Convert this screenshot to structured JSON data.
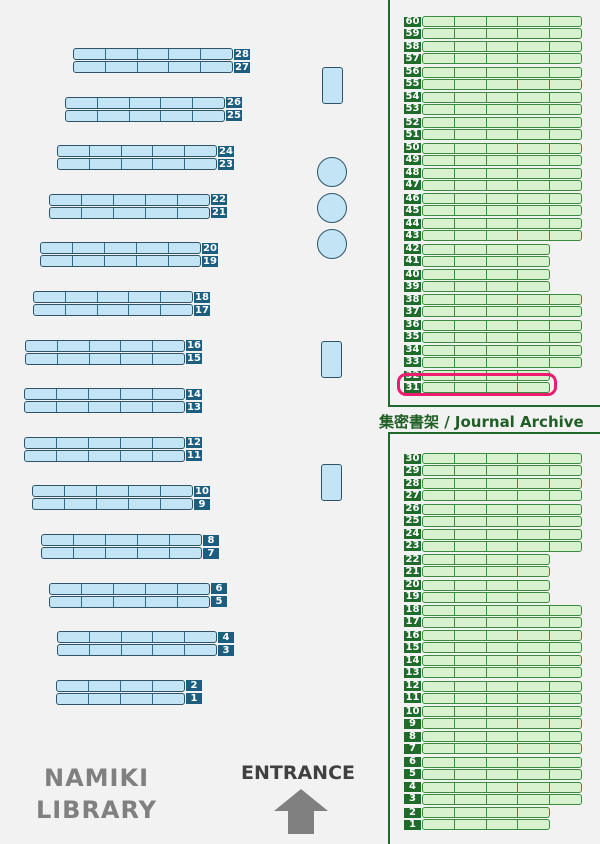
{
  "library_name": "NAMIKI\nLIBRARY",
  "library_name_lines": [
    "NAMIKI",
    "LIBRARY"
  ],
  "entrance_label": "ENTRANCE",
  "archive_label": "集密書架 / Journal Archive",
  "highlighted_shelf": 31,
  "colors": {
    "general_shelf": "#c2e4f5",
    "archive_shelf": "#d8f2cf",
    "highlight": "#ee1c6e",
    "archive_border": "#1f6b2a"
  },
  "general_shelves": [
    {
      "pair": [
        28,
        27
      ],
      "segments": 5
    },
    {
      "pair": [
        26,
        25
      ],
      "segments": 5
    },
    {
      "pair": [
        24,
        23
      ],
      "segments": 5
    },
    {
      "pair": [
        22,
        21
      ],
      "segments": 5
    },
    {
      "pair": [
        20,
        19
      ],
      "segments": 5
    },
    {
      "pair": [
        18,
        17
      ],
      "segments": 5
    },
    {
      "pair": [
        16,
        15
      ],
      "segments": 5
    },
    {
      "pair": [
        14,
        13
      ],
      "segments": 5
    },
    {
      "pair": [
        12,
        11
      ],
      "segments": 5
    },
    {
      "pair": [
        10,
        9
      ],
      "segments": 5
    },
    {
      "pair": [
        8,
        7
      ],
      "segments": 5
    },
    {
      "pair": [
        6,
        5
      ],
      "segments": 5
    },
    {
      "pair": [
        4,
        3
      ],
      "segments": 5
    },
    {
      "pair": [
        2,
        1
      ],
      "segments": 4
    }
  ],
  "archive_upper": [
    {
      "pair": [
        60,
        59
      ],
      "segments": 5
    },
    {
      "pair": [
        58,
        57
      ],
      "segments": 5
    },
    {
      "pair": [
        56,
        55
      ],
      "segments": 5
    },
    {
      "pair": [
        54,
        53
      ],
      "segments": 5
    },
    {
      "pair": [
        52,
        51
      ],
      "segments": 5
    },
    {
      "pair": [
        50,
        49
      ],
      "segments": 5
    },
    {
      "pair": [
        48,
        47
      ],
      "segments": 5
    },
    {
      "pair": [
        46,
        45
      ],
      "segments": 5
    },
    {
      "pair": [
        44,
        43
      ],
      "segments": 5
    },
    {
      "pair": [
        42,
        41
      ],
      "segments": 4
    },
    {
      "pair": [
        40,
        39
      ],
      "segments": 4
    },
    {
      "pair": [
        38,
        37
      ],
      "segments": 5
    },
    {
      "pair": [
        36,
        35
      ],
      "segments": 5
    },
    {
      "pair": [
        34,
        33
      ],
      "segments": 5
    },
    {
      "pair": [
        32,
        31
      ],
      "segments": 4
    }
  ],
  "archive_lower": [
    {
      "pair": [
        30,
        29
      ],
      "segments": 5
    },
    {
      "pair": [
        28,
        27
      ],
      "segments": 5
    },
    {
      "pair": [
        26,
        25
      ],
      "segments": 5
    },
    {
      "pair": [
        24,
        23
      ],
      "segments": 5
    },
    {
      "pair": [
        22,
        21
      ],
      "segments": 4
    },
    {
      "pair": [
        20,
        19
      ],
      "segments": 4
    },
    {
      "pair": [
        18,
        17
      ],
      "segments": 5
    },
    {
      "pair": [
        16,
        15
      ],
      "segments": 5
    },
    {
      "pair": [
        14,
        13
      ],
      "segments": 5
    },
    {
      "pair": [
        12,
        11
      ],
      "segments": 5
    },
    {
      "pair": [
        10,
        9
      ],
      "segments": 5
    },
    {
      "pair": [
        8,
        7
      ],
      "segments": 5
    },
    {
      "pair": [
        6,
        5
      ],
      "segments": 5
    },
    {
      "pair": [
        4,
        3
      ],
      "segments": 5
    },
    {
      "pair": [
        2,
        1
      ],
      "segments": 4
    }
  ],
  "furniture": [
    {
      "type": "table"
    },
    {
      "type": "round-table"
    },
    {
      "type": "round-table"
    },
    {
      "type": "round-table"
    },
    {
      "type": "table"
    },
    {
      "type": "table"
    }
  ]
}
